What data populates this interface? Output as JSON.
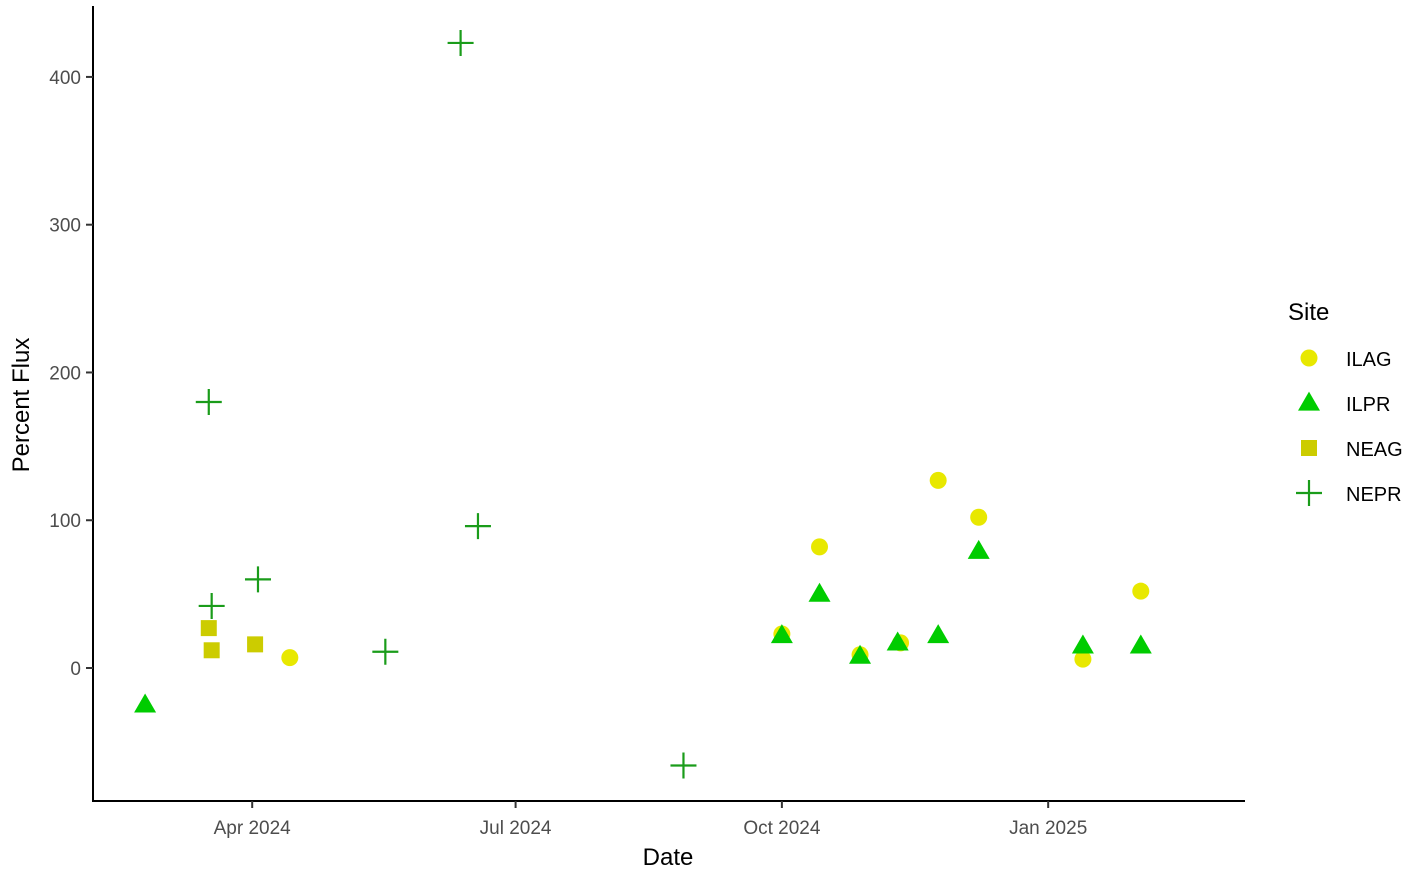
{
  "chart_data": {
    "type": "scatter",
    "xlabel": "Date",
    "ylabel": "Percent Flux",
    "x_type": "date",
    "xlim": [
      "2024-02-06",
      "2025-03-10"
    ],
    "x_ticks": [
      {
        "date": "2024-04-01",
        "label": "Apr 2024"
      },
      {
        "date": "2024-07-01",
        "label": "Jul 2024"
      },
      {
        "date": "2024-10-01",
        "label": "Oct 2024"
      },
      {
        "date": "2025-01-01",
        "label": "Jan 2025"
      }
    ],
    "ylim": [
      -90,
      448
    ],
    "y_ticks": [
      0,
      100,
      200,
      300,
      400
    ],
    "grid": false,
    "legend": {
      "title": "Site",
      "position": "right"
    },
    "series": [
      {
        "name": "ILAG",
        "marker": "circle",
        "color": "#e8e800",
        "points": [
          {
            "x": "2024-04-14",
            "y": 7
          },
          {
            "x": "2024-10-01",
            "y": 23
          },
          {
            "x": "2024-10-14",
            "y": 82
          },
          {
            "x": "2024-10-28",
            "y": 9
          },
          {
            "x": "2024-11-11",
            "y": 17
          },
          {
            "x": "2024-11-24",
            "y": 127
          },
          {
            "x": "2024-12-08",
            "y": 102
          },
          {
            "x": "2025-01-13",
            "y": 6
          },
          {
            "x": "2025-02-02",
            "y": 52
          }
        ]
      },
      {
        "name": "ILPR",
        "marker": "triangle",
        "color": "#00cc00",
        "points": [
          {
            "x": "2024-02-24",
            "y": -25
          },
          {
            "x": "2024-10-01",
            "y": 22
          },
          {
            "x": "2024-10-14",
            "y": 50
          },
          {
            "x": "2024-10-28",
            "y": 8
          },
          {
            "x": "2024-11-10",
            "y": 17
          },
          {
            "x": "2024-11-24",
            "y": 22
          },
          {
            "x": "2024-12-08",
            "y": 79
          },
          {
            "x": "2025-01-13",
            "y": 15
          },
          {
            "x": "2025-02-02",
            "y": 15
          }
        ]
      },
      {
        "name": "NEAG",
        "marker": "square",
        "color": "#cccc00",
        "points": [
          {
            "x": "2024-03-17",
            "y": 27
          },
          {
            "x": "2024-03-18",
            "y": 12
          },
          {
            "x": "2024-04-02",
            "y": 16
          }
        ]
      },
      {
        "name": "NEPR",
        "marker": "cross",
        "color": "#1a9c1a",
        "points": [
          {
            "x": "2024-03-17",
            "y": 180
          },
          {
            "x": "2024-03-18",
            "y": 42
          },
          {
            "x": "2024-04-03",
            "y": 60
          },
          {
            "x": "2024-05-17",
            "y": 11
          },
          {
            "x": "2024-06-12",
            "y": 423
          },
          {
            "x": "2024-06-18",
            "y": 96
          },
          {
            "x": "2024-08-28",
            "y": -66
          }
        ]
      }
    ]
  }
}
